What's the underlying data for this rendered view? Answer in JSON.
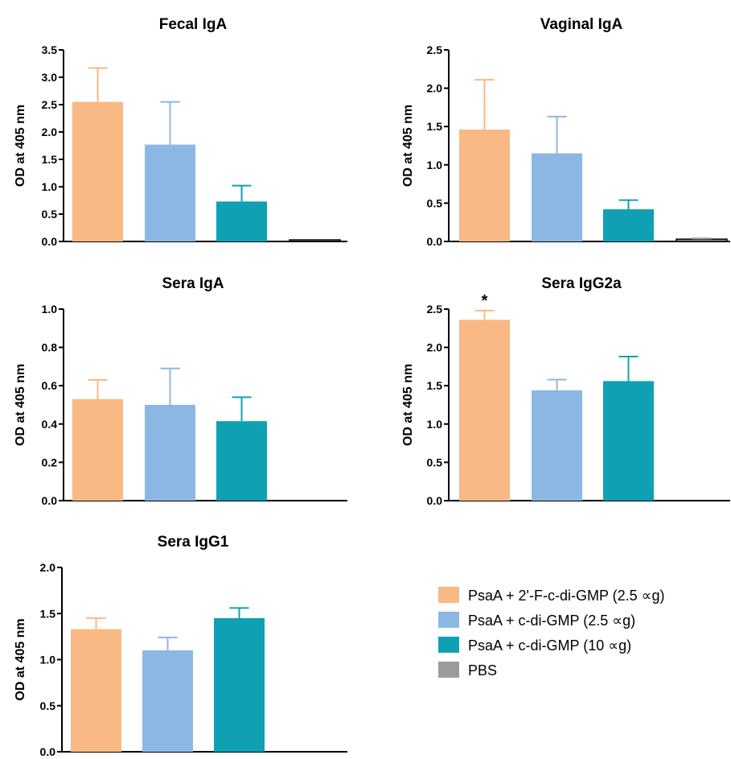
{
  "legend": [
    {
      "label": "PsaA + 2'-F-c-di-GMP (2.5 ∝g)",
      "color": "#F9B984"
    },
    {
      "label": "PsaA + c-di-GMP (2.5 ∝g)",
      "color": "#8DB7E3"
    },
    {
      "label": "PsaA + c-di-GMP (10 ∝g)",
      "color": "#10A0B4"
    },
    {
      "label": "PBS",
      "color": "#9A9CA2"
    }
  ],
  "chart_data": [
    {
      "type": "bar",
      "title": "Fecal IgA",
      "ylabel": "OD at 405 nm",
      "ylim": [
        0,
        3.5
      ],
      "yticks": [
        "0.0",
        "0.5",
        "1.0",
        "1.5",
        "2.0",
        "2.5",
        "3.0",
        "3.5"
      ],
      "series": [
        {
          "name": "PsaA + 2'-F-c-di-GMP (2.5 ∝g)",
          "value": 2.55,
          "error": 0.62
        },
        {
          "name": "PsaA + c-di-GMP (2.5 ∝g)",
          "value": 1.77,
          "error": 0.78
        },
        {
          "name": "PsaA + c-di-GMP (10 ∝g)",
          "value": 0.73,
          "error": 0.29
        },
        {
          "name": "PBS",
          "value": 0.02,
          "error": 0.0
        }
      ],
      "annotations": []
    },
    {
      "type": "bar",
      "title": "Vaginal IgA",
      "ylabel": "OD at 405 nm",
      "ylim": [
        0,
        2.5
      ],
      "yticks": [
        "0.0",
        "0.5",
        "1.0",
        "1.5",
        "2.0",
        "2.5"
      ],
      "series": [
        {
          "name": "PsaA + 2'-F-c-di-GMP (2.5 ∝g)",
          "value": 1.46,
          "error": 0.65
        },
        {
          "name": "PsaA + c-di-GMP (2.5 ∝g)",
          "value": 1.15,
          "error": 0.48
        },
        {
          "name": "PsaA + c-di-GMP (10 ∝g)",
          "value": 0.42,
          "error": 0.12
        },
        {
          "name": "PBS",
          "value": 0.03,
          "error": 0.01
        }
      ],
      "annotations": []
    },
    {
      "type": "bar",
      "title": "Sera IgA",
      "ylabel": "OD at 405 nm",
      "ylim": [
        0,
        1.0
      ],
      "yticks": [
        "0.0",
        "0.2",
        "0.4",
        "0.6",
        "0.8",
        "1.0"
      ],
      "series": [
        {
          "name": "PsaA + 2'-F-c-di-GMP (2.5 ∝g)",
          "value": 0.53,
          "error": 0.1
        },
        {
          "name": "PsaA + c-di-GMP (2.5 ∝g)",
          "value": 0.5,
          "error": 0.19
        },
        {
          "name": "PsaA + c-di-GMP (10 ∝g)",
          "value": 0.415,
          "error": 0.125
        },
        {
          "name": "PBS",
          "value": 0.0,
          "error": 0.0
        }
      ],
      "annotations": []
    },
    {
      "type": "bar",
      "title": "Sera IgG2a",
      "ylabel": "OD at 405 nm",
      "ylim": [
        0,
        2.5
      ],
      "yticks": [
        "0.0",
        "0.5",
        "1.0",
        "1.5",
        "2.0",
        "2.5"
      ],
      "series": [
        {
          "name": "PsaA + 2'-F-c-di-GMP (2.5 ∝g)",
          "value": 2.36,
          "error": 0.12
        },
        {
          "name": "PsaA + c-di-GMP (2.5 ∝g)",
          "value": 1.44,
          "error": 0.14
        },
        {
          "name": "PsaA + c-di-GMP (10 ∝g)",
          "value": 1.56,
          "error": 0.32
        },
        {
          "name": "PBS",
          "value": 0.0,
          "error": 0.0
        }
      ],
      "annotations": [
        {
          "text": "*",
          "bar": 0
        }
      ]
    },
    {
      "type": "bar",
      "title": "Sera IgG1",
      "ylabel": "OD at 405 nm",
      "ylim": [
        0,
        2.0
      ],
      "yticks": [
        "0.0",
        "0.5",
        "1.0",
        "1.5",
        "2.0"
      ],
      "series": [
        {
          "name": "PsaA + 2'-F-c-di-GMP (2.5 ∝g)",
          "value": 1.33,
          "error": 0.12
        },
        {
          "name": "PsaA + c-di-GMP (2.5 ∝g)",
          "value": 1.1,
          "error": 0.14
        },
        {
          "name": "PsaA + c-di-GMP (10 ∝g)",
          "value": 1.45,
          "error": 0.11
        },
        {
          "name": "PBS",
          "value": 0.0,
          "error": 0.0
        }
      ],
      "annotations": []
    }
  ]
}
